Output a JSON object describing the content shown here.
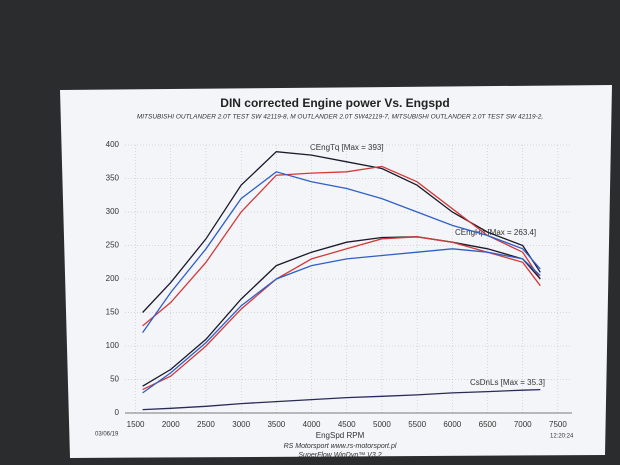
{
  "chart_data": {
    "type": "line",
    "title": "DIN corrected Engine power Vs. Engspd",
    "subtitle": "MITSUBISHI OUTLANDER 2.0T TEST SW 42119-8, M OUTLANDER 2.0T SW42119-7, MITSUBISHI OUTLANDER 2.0T TEST SW 42119-2,",
    "x_label": "EngSpd RPM",
    "annotations": [
      "CEngTq [Max = 393]",
      "CEngHp [Max = 263.4]",
      "CsDnLs [Max = 35.3]"
    ],
    "footer": [
      "RS Motorsport  www.rs-motorsport.pl",
      "SuperFlow WinDyn™ V3.2"
    ],
    "date": "03/06/19",
    "time": "12:20:24",
    "x": [
      1600,
      2000,
      2500,
      3000,
      3500,
      4000,
      4500,
      5000,
      5500,
      6000,
      6500,
      7000,
      7250
    ],
    "series": [
      {
        "color": "#1a1a2a",
        "values": [
          150,
          195,
          260,
          340,
          390,
          385,
          375,
          365,
          340,
          300,
          270,
          250,
          210
        ]
      },
      {
        "color": "#d23a3a",
        "values": [
          130,
          165,
          225,
          300,
          355,
          358,
          360,
          368,
          345,
          305,
          265,
          240,
          200
        ]
      },
      {
        "color": "#2f5fc8",
        "values": [
          120,
          180,
          245,
          320,
          360,
          345,
          335,
          320,
          300,
          280,
          265,
          245,
          215
        ]
      },
      {
        "color": "#1a1a2a",
        "values": [
          40,
          65,
          110,
          170,
          220,
          240,
          255,
          262,
          263,
          255,
          245,
          230,
          200
        ]
      },
      {
        "color": "#d23a3a",
        "values": [
          35,
          55,
          100,
          155,
          200,
          230,
          245,
          260,
          263,
          255,
          240,
          225,
          190
        ]
      },
      {
        "color": "#2f5fc8",
        "values": [
          30,
          60,
          105,
          160,
          200,
          220,
          230,
          235,
          240,
          245,
          240,
          230,
          205
        ]
      },
      {
        "color": "#2a2a5a",
        "values": [
          5,
          7,
          10,
          14,
          17,
          20,
          23,
          25,
          27,
          30,
          32,
          34,
          35
        ]
      }
    ],
    "xlim": [
      1350,
      7700
    ],
    "xticks": [
      1500,
      2000,
      2500,
      3000,
      3500,
      4000,
      4500,
      5000,
      5500,
      6000,
      6500,
      7000,
      7500
    ],
    "ylim": [
      0,
      400
    ],
    "yticks": [
      0,
      50,
      100,
      150,
      200,
      250,
      300,
      350,
      400
    ],
    "grid": true
  }
}
